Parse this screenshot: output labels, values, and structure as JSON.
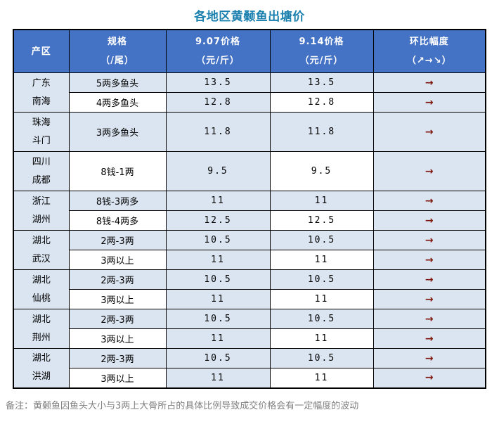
{
  "title": "各地区黄颡鱼出塘价",
  "note": "备注：黄颡鱼因鱼头大小与3两上大骨所占的具体比例导致成交价格会有一定幅度的波动",
  "colors": {
    "header_bg": "#4472c4",
    "band_blue": "#dbe5f1",
    "band_white": "#ffffff",
    "title_color": "#1b80ae",
    "arrow_color": "#7e150d",
    "note_color": "#808080",
    "border": "#000000"
  },
  "chart_data": {
    "type": "table",
    "title": "各地区黄颡鱼出塘价",
    "headers": [
      {
        "line1": "产区",
        "line2": ""
      },
      {
        "line1": "规格",
        "line2": "（/尾）"
      },
      {
        "line1": "9.07价格",
        "line2": "（元/斤）"
      },
      {
        "line1": "9.14价格",
        "line2": "（元/斤）"
      },
      {
        "line1": "环比幅度",
        "line2": "（↗→↘）"
      }
    ],
    "groups": [
      {
        "region": [
          "广东",
          "南海"
        ],
        "rows": [
          {
            "spec": "5两多鱼头",
            "p0907": 13.5,
            "p0914": 13.5,
            "trend": "→"
          },
          {
            "spec": "4两多鱼头",
            "p0907": 12.8,
            "p0914": 12.8,
            "trend": "→"
          }
        ]
      },
      {
        "region": [
          "珠海",
          "斗门"
        ],
        "rows": [
          {
            "spec": "3两多鱼头",
            "p0907": 11.8,
            "p0914": 11.8,
            "trend": "→"
          }
        ]
      },
      {
        "region": [
          "四川",
          "成都"
        ],
        "rows": [
          {
            "spec": "8钱-1两",
            "p0907": 9.5,
            "p0914": 9.5,
            "trend": "→"
          }
        ]
      },
      {
        "region": [
          "浙江",
          "湖州"
        ],
        "rows": [
          {
            "spec": "8钱-3两多",
            "p0907": 11,
            "p0914": 11,
            "trend": "→"
          },
          {
            "spec": "8钱-4两多",
            "p0907": 12.5,
            "p0914": 12.5,
            "trend": "→"
          }
        ]
      },
      {
        "region": [
          "湖北",
          "武汉"
        ],
        "rows": [
          {
            "spec": "2两-3两",
            "p0907": 10.5,
            "p0914": 10.5,
            "trend": "→"
          },
          {
            "spec": "3两以上",
            "p0907": 11,
            "p0914": 11,
            "trend": "→"
          }
        ]
      },
      {
        "region": [
          "湖北",
          "仙桃"
        ],
        "rows": [
          {
            "spec": "2两-3两",
            "p0907": 10.5,
            "p0914": 10.5,
            "trend": "→"
          },
          {
            "spec": "3两以上",
            "p0907": 11,
            "p0914": 11,
            "trend": "→"
          }
        ]
      },
      {
        "region": [
          "湖北",
          "荆州"
        ],
        "rows": [
          {
            "spec": "2两-3两",
            "p0907": 10.5,
            "p0914": 10.5,
            "trend": "→"
          },
          {
            "spec": "3两以上",
            "p0907": 11,
            "p0914": 11,
            "trend": "→"
          }
        ]
      },
      {
        "region": [
          "湖北",
          "洪湖"
        ],
        "rows": [
          {
            "spec": "2两-3两",
            "p0907": 10.5,
            "p0914": 10.5,
            "trend": "→"
          },
          {
            "spec": "3两以上",
            "p0907": 11,
            "p0914": 11,
            "trend": "→"
          }
        ]
      }
    ]
  }
}
